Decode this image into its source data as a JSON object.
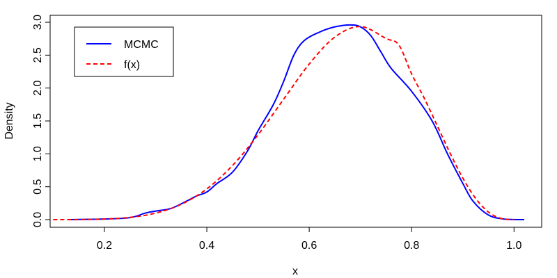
{
  "chart_data": {
    "type": "line",
    "title": "",
    "xlabel": "x",
    "ylabel": "Density",
    "xlim": [
      0.094,
      1.054
    ],
    "ylim": [
      -0.116,
      3.106
    ],
    "xticks": [
      "0.2",
      "0.4",
      "0.6",
      "0.8",
      "1.0"
    ],
    "xtick_values": [
      0.2,
      0.4,
      0.6,
      0.8,
      1.0
    ],
    "yticks": [
      "0.0",
      "0.5",
      "1.0",
      "1.5",
      "2.0",
      "2.5",
      "3.0"
    ],
    "ytick_values": [
      0,
      0.5,
      1.0,
      1.5,
      2.0,
      2.5,
      3.0
    ],
    "legend_position": "top-left",
    "series": [
      {
        "name": "MCMC",
        "color": "#0000ff",
        "style": "solid",
        "x": [
          0.13,
          0.2,
          0.25,
          0.28,
          0.3,
          0.33,
          0.36,
          0.38,
          0.4,
          0.42,
          0.45,
          0.48,
          0.5,
          0.53,
          0.55,
          0.57,
          0.59,
          0.62,
          0.65,
          0.68,
          0.7,
          0.72,
          0.74,
          0.76,
          0.8,
          0.84,
          0.87,
          0.9,
          0.92,
          0.95,
          0.98,
          1.02
        ],
        "y": [
          0,
          0.01,
          0.03,
          0.1,
          0.13,
          0.17,
          0.28,
          0.36,
          0.42,
          0.55,
          0.72,
          1.05,
          1.35,
          1.75,
          2.1,
          2.5,
          2.72,
          2.85,
          2.93,
          2.96,
          2.93,
          2.8,
          2.55,
          2.3,
          1.95,
          1.5,
          1.0,
          0.55,
          0.28,
          0.07,
          0.01,
          0
        ]
      },
      {
        "name": "f(x)",
        "color": "#ff0000",
        "style": "dashed",
        "x": [
          0.1,
          0.15,
          0.2,
          0.25,
          0.3,
          0.35,
          0.4,
          0.45,
          0.5,
          0.55,
          0.6,
          0.65,
          0.7,
          0.75,
          0.775,
          0.8,
          0.825,
          0.85,
          0.875,
          0.9,
          0.925,
          0.95,
          0.975,
          1.0
        ],
        "y": [
          0.0001,
          0.0014,
          0.0087,
          0.034,
          0.099,
          0.233,
          0.467,
          0.821,
          1.289,
          1.83,
          2.365,
          2.775,
          2.935,
          2.753,
          2.655,
          2.215,
          1.841,
          1.428,
          1.012,
          0.631,
          0.323,
          0.115,
          0.017,
          0
        ]
      }
    ]
  }
}
